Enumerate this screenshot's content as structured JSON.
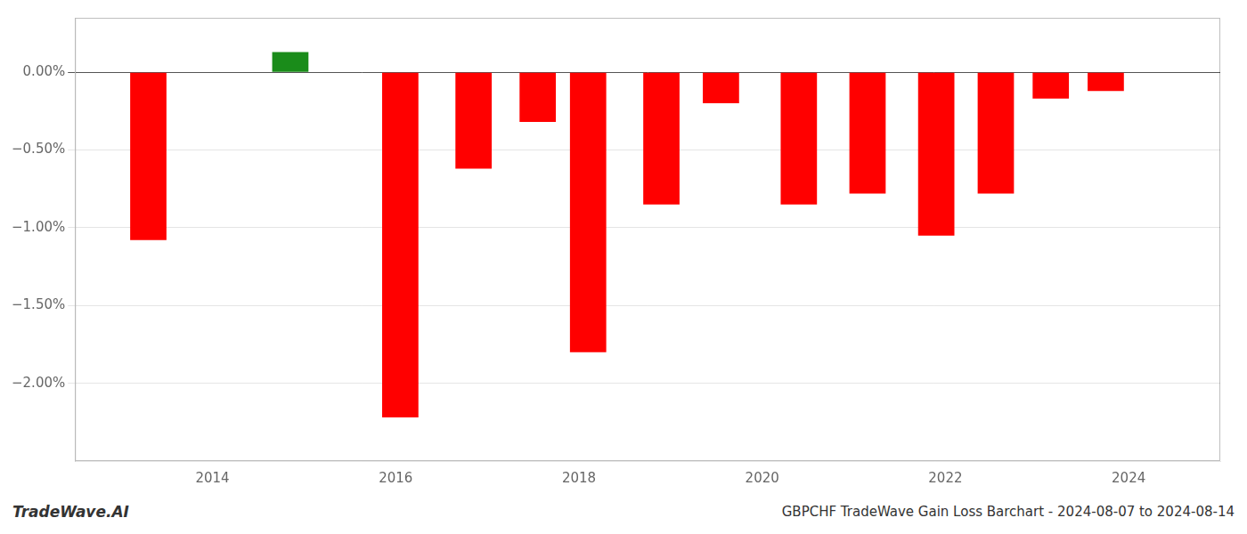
{
  "chart_data": {
    "type": "bar",
    "title": "GBPCHF TradeWave Gain Loss Barchart - 2024-08-07 to 2024-08-14",
    "annotations": [
      "TradeWave.AI"
    ],
    "x": [
      2013.3,
      2014.85,
      2016.05,
      2016.85,
      2017.55,
      2018.1,
      2018.9,
      2019.55,
      2020.4,
      2021.15,
      2021.9,
      2022.55,
      2023.15,
      2023.75
    ],
    "values": [
      -1.08,
      0.13,
      -2.22,
      -0.62,
      -0.32,
      -1.8,
      -0.85,
      -0.2,
      -0.85,
      -0.78,
      -1.05,
      -0.78,
      -0.17,
      -0.12
    ],
    "colors": [
      "#ff0000",
      "#1a8c1a",
      "#ff0000",
      "#ff0000",
      "#ff0000",
      "#ff0000",
      "#ff0000",
      "#ff0000",
      "#ff0000",
      "#ff0000",
      "#ff0000",
      "#ff0000",
      "#ff0000",
      "#ff0000"
    ],
    "xlim": [
      2012.5,
      2025.0
    ],
    "xticks": [
      2014,
      2016,
      2018,
      2020,
      2022,
      2024
    ],
    "ylim": [
      -2.5,
      0.35
    ],
    "yticks": [
      {
        "value": 0.0,
        "label": "0.00%"
      },
      {
        "value": -0.5,
        "label": "−0.50%"
      },
      {
        "value": -1.0,
        "label": "−1.00%"
      },
      {
        "value": -1.5,
        "label": "−1.50%"
      },
      {
        "value": -2.0,
        "label": "−2.00%"
      }
    ],
    "grid": "y"
  }
}
